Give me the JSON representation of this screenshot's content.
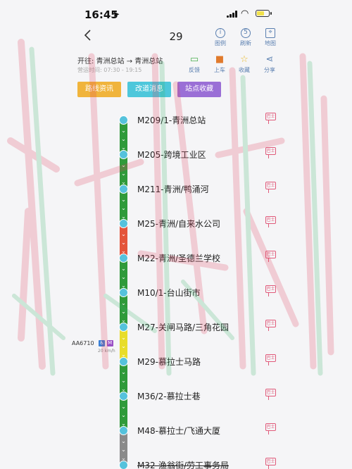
{
  "status": {
    "time": "16:45"
  },
  "nav": {
    "title": "29",
    "actions": [
      {
        "name": "legend",
        "label": "图例",
        "glyph": "i"
      },
      {
        "name": "refresh",
        "label": "刷新",
        "glyph": "5"
      },
      {
        "name": "map",
        "label": "地图",
        "glyph": "⌖"
      }
    ]
  },
  "route": {
    "direction": "开往: 青洲总站 → 青洲总站",
    "service_time": "营运时间: 07:30 - 19:15",
    "actions": [
      {
        "name": "feedback",
        "label": "反馈",
        "glyph": "▭"
      },
      {
        "name": "board",
        "label": "上车",
        "glyph": "■"
      },
      {
        "name": "favorite",
        "label": "收藏",
        "glyph": "☆"
      },
      {
        "name": "share",
        "label": "分享",
        "glyph": "⋖"
      }
    ]
  },
  "chips": [
    {
      "name": "route-info",
      "label": "路线资讯",
      "color": "#f0b43c"
    },
    {
      "name": "diversion-news",
      "label": "改道消息",
      "color": "#4ec7db"
    },
    {
      "name": "stop-favorites",
      "label": "站点收藏",
      "color": "#9a6fd6"
    }
  ],
  "stops": [
    {
      "name": "M209/1-青洲总站",
      "alert": "巴士"
    },
    {
      "name": "M205-跨境工业区",
      "alert": "巴士"
    },
    {
      "name": "M211-青洲/鸭涌河",
      "alert": "巴士"
    },
    {
      "name": "M25-青洲/自来水公司",
      "alert": "巴士"
    },
    {
      "name": "M22-青洲/圣德兰学校",
      "alert": "巴士"
    },
    {
      "name": "M10/1-台山街市",
      "alert": "巴士"
    },
    {
      "name": "M27-关闸马路/三角花园",
      "alert": "巴士"
    },
    {
      "name": "M29-慕拉士马路",
      "alert": "巴士"
    },
    {
      "name": "M36/2-慕拉士巷",
      "alert": "巴士"
    },
    {
      "name": "M48-慕拉士/飞通大厦",
      "alert": "巴士"
    },
    {
      "name": "M32-渔翁街/劳工事务局",
      "alert": "巴士"
    }
  ],
  "segments": [
    "#2f9a3a",
    "#2f9a3a",
    "#2f9a3a",
    "#e4553b",
    "#2f9a3a",
    "#2f9a3a",
    "#e8dd2a",
    "#2f9a3a",
    "#2f9a3a",
    "#8a8a8a"
  ],
  "bus": {
    "plate": "AA6710",
    "speed": "20 km/h"
  }
}
